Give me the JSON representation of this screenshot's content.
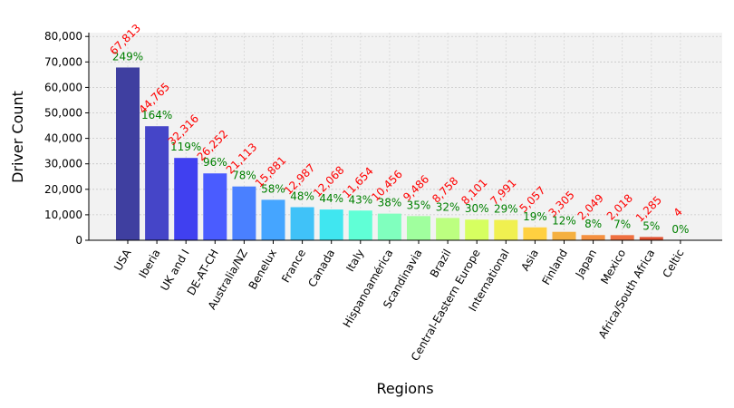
{
  "chart_data": {
    "type": "bar",
    "title": "",
    "xlabel": "Regions",
    "ylabel": "Driver Count",
    "ylim": [
      0,
      81500
    ],
    "yticks": [
      0,
      10000,
      20000,
      30000,
      40000,
      50000,
      60000,
      70000,
      80000
    ],
    "ytick_labels": [
      "0",
      "10,000",
      "20,000",
      "30,000",
      "40,000",
      "50,000",
      "60,000",
      "70,000",
      "80,000"
    ],
    "grid": true,
    "legend": "none",
    "categories": [
      "USA",
      "Iberia",
      "UK and I",
      "DE-AT-CH",
      "Australia/NZ",
      "Benelux",
      "France",
      "Canada",
      "Italy",
      "Hispanoamérica",
      "Scandinavia",
      "Brazil",
      "Central-Eastern Europe",
      "International",
      "Asia",
      "Finland",
      "Japan",
      "Mexico",
      "Africa/South Africa",
      "Celtic"
    ],
    "values": [
      67813,
      44765,
      32316,
      26252,
      21113,
      15881,
      12987,
      12068,
      11654,
      10456,
      9486,
      8758,
      8101,
      7991,
      5057,
      3305,
      2049,
      2018,
      1285,
      4
    ],
    "value_labels": [
      "67,813",
      "44,765",
      "32,316",
      "26,252",
      "21,113",
      "15,881",
      "12,987",
      "12,068",
      "11,654",
      "10,456",
      "9,486",
      "8,758",
      "8,101",
      "7,991",
      "5,057",
      "3,305",
      "2,049",
      "2,018",
      "1,285",
      "4"
    ],
    "percent_labels": [
      "249%",
      "164%",
      "119%",
      "96%",
      "78%",
      "58%",
      "48%",
      "44%",
      "43%",
      "38%",
      "35%",
      "32%",
      "30%",
      "29%",
      "19%",
      "12%",
      "8%",
      "7%",
      "5%",
      "0%"
    ],
    "colors": [
      "#3f3fa0",
      "#4545c8",
      "#4040f0",
      "#4a5cff",
      "#4a80ff",
      "#45a5ff",
      "#40c2f8",
      "#40e6f0",
      "#60ffd6",
      "#80ffbe",
      "#a0ff9e",
      "#bcff80",
      "#d6ff60",
      "#f0f050",
      "#ffd040",
      "#f5b040",
      "#f59040",
      "#f07040",
      "#e05030",
      "#c04040"
    ],
    "count_label_color": "#ff0000",
    "percent_label_color": "#008000"
  }
}
